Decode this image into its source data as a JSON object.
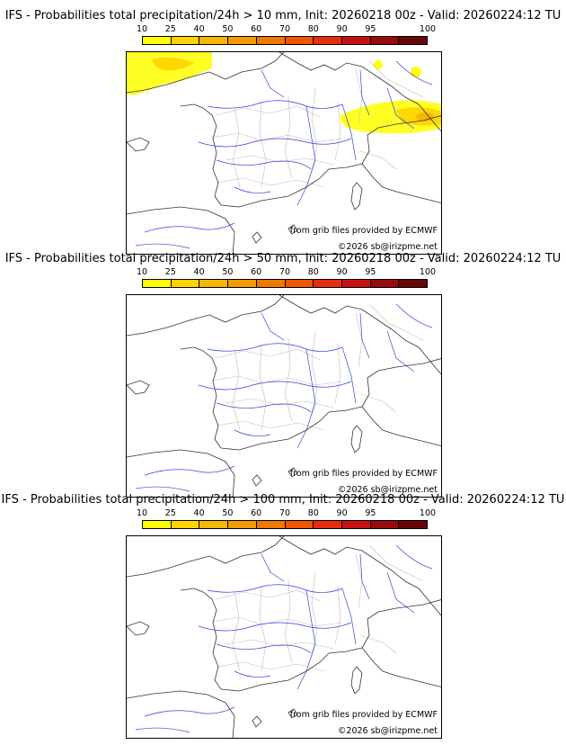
{
  "colorbar": {
    "ticks": [
      "10",
      "25",
      "40",
      "50",
      "60",
      "70",
      "80",
      "90",
      "95",
      "100"
    ],
    "colors": [
      "#ffff00",
      "#ffd400",
      "#f5b800",
      "#f29a00",
      "#ef7800",
      "#f05500",
      "#e82c10",
      "#c81010",
      "#9a0a0a",
      "#6a0505"
    ]
  },
  "panels": [
    {
      "title": "IFS - Probabilities total precipitation/24h > 10 mm, Init: 20260218 00z - Valid: 20260224:12 TU",
      "source": "from grib files provided by ECMWF",
      "copyright": "©2026 sb@irizpme.net"
    },
    {
      "title": "IFS - Probabilities total precipitation/24h > 50 mm, Init: 20260218 00z - Valid: 20260224:12 TU",
      "source": "from grib files provided by ECMWF",
      "copyright": "©2026 sb@irizpme.net"
    },
    {
      "title": "IFS - Probabilities total precipitation/24h > 100 mm, Init: 20260218 00z - Valid: 20260224:12 TU",
      "source": "from grib files provided by ECMWF",
      "copyright": "©2026 sb@irizpme.net"
    }
  ]
}
